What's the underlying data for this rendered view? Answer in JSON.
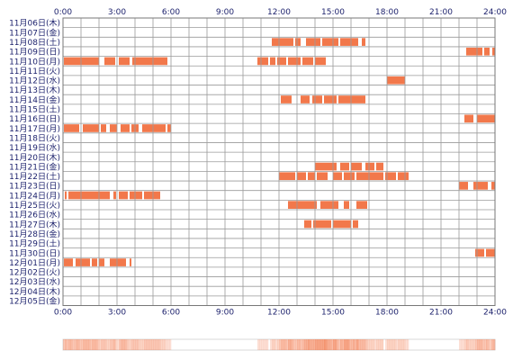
{
  "chart_data": {
    "type": "timeline",
    "x_ticks": [
      "0:00",
      "3:00",
      "6:00",
      "9:00",
      "12:00",
      "15:00",
      "18:00",
      "21:00",
      "24:00"
    ],
    "x_range_hours": [
      0,
      24
    ],
    "grid": true,
    "bar_color": "#f2784b",
    "summary_strip_color": "#f2784b",
    "days": [
      {
        "label": "11月06日(木)",
        "segments": []
      },
      {
        "label": "11月07日(金)",
        "segments": []
      },
      {
        "label": "11月08日(土)",
        "segments": [
          [
            11.6,
            12.8
          ],
          [
            12.9,
            13.2
          ],
          [
            13.5,
            14.3
          ],
          [
            14.4,
            15.3
          ],
          [
            15.4,
            16.4
          ],
          [
            16.6,
            16.8
          ]
        ]
      },
      {
        "label": "11月09日(日)",
        "segments": [
          [
            22.4,
            23.3
          ],
          [
            23.4,
            23.7
          ],
          [
            23.85,
            24.0
          ]
        ]
      },
      {
        "label": "11月10日(月)",
        "segments": [
          [
            0.05,
            2.0
          ],
          [
            2.3,
            2.9
          ],
          [
            3.1,
            3.7
          ],
          [
            3.85,
            5.8
          ],
          [
            10.8,
            11.4
          ],
          [
            11.5,
            11.8
          ],
          [
            11.9,
            12.4
          ],
          [
            12.5,
            13.2
          ],
          [
            13.3,
            13.9
          ],
          [
            14.0,
            14.6
          ]
        ]
      },
      {
        "label": "11月11日(火)",
        "segments": []
      },
      {
        "label": "11月12日(水)",
        "segments": [
          [
            18.0,
            19.0
          ]
        ]
      },
      {
        "label": "11月13日(木)",
        "segments": []
      },
      {
        "label": "11月14日(金)",
        "segments": [
          [
            12.1,
            12.7
          ],
          [
            13.2,
            13.7
          ],
          [
            13.85,
            14.4
          ],
          [
            14.5,
            15.2
          ],
          [
            15.3,
            16.8
          ]
        ]
      },
      {
        "label": "11月15日(土)",
        "segments": []
      },
      {
        "label": "11月16日(日)",
        "segments": [
          [
            22.3,
            22.8
          ],
          [
            23.0,
            24.0
          ]
        ]
      },
      {
        "label": "11月17日(月)",
        "segments": [
          [
            0.05,
            0.9
          ],
          [
            1.1,
            2.0
          ],
          [
            2.1,
            2.4
          ],
          [
            2.6,
            3.0
          ],
          [
            3.2,
            3.7
          ],
          [
            3.8,
            4.2
          ],
          [
            4.4,
            5.7
          ],
          [
            5.8,
            6.0
          ]
        ]
      },
      {
        "label": "11月18日(火)",
        "segments": []
      },
      {
        "label": "11月19日(水)",
        "segments": []
      },
      {
        "label": "11月20日(木)",
        "segments": []
      },
      {
        "label": "11月21日(金)",
        "segments": [
          [
            14.0,
            15.2
          ],
          [
            15.4,
            15.9
          ],
          [
            16.0,
            16.6
          ],
          [
            16.8,
            17.3
          ],
          [
            17.4,
            17.8
          ]
        ]
      },
      {
        "label": "11月22日(土)",
        "segments": [
          [
            12.0,
            12.9
          ],
          [
            13.0,
            13.5
          ],
          [
            13.6,
            14.0
          ],
          [
            14.1,
            14.7
          ],
          [
            15.0,
            15.5
          ],
          [
            15.6,
            16.2
          ],
          [
            16.3,
            17.8
          ],
          [
            17.9,
            18.5
          ],
          [
            18.6,
            19.2
          ]
        ]
      },
      {
        "label": "11月23日(日)",
        "segments": [
          [
            22.0,
            22.5
          ],
          [
            22.8,
            23.6
          ],
          [
            23.8,
            24.0
          ]
        ]
      },
      {
        "label": "11月24日(月)",
        "segments": [
          [
            0.1,
            0.2
          ],
          [
            0.3,
            2.6
          ],
          [
            2.8,
            2.95
          ],
          [
            3.1,
            3.6
          ],
          [
            3.7,
            4.4
          ],
          [
            4.5,
            5.4
          ]
        ]
      },
      {
        "label": "11月25日(火)",
        "segments": [
          [
            12.5,
            14.1
          ],
          [
            14.3,
            15.3
          ],
          [
            15.6,
            15.9
          ],
          [
            16.3,
            16.9
          ]
        ]
      },
      {
        "label": "11月26日(水)",
        "segments": []
      },
      {
        "label": "11月27日(木)",
        "segments": [
          [
            13.4,
            13.8
          ],
          [
            13.9,
            14.9
          ],
          [
            15.0,
            16.0
          ],
          [
            16.1,
            16.4
          ]
        ]
      },
      {
        "label": "11月28日(金)",
        "segments": []
      },
      {
        "label": "11月29日(土)",
        "segments": []
      },
      {
        "label": "11月30日(日)",
        "segments": [
          [
            22.9,
            23.4
          ],
          [
            23.5,
            24.0
          ]
        ]
      },
      {
        "label": "12月01日(月)",
        "segments": [
          [
            0.05,
            0.55
          ],
          [
            0.7,
            1.5
          ],
          [
            1.6,
            1.9
          ],
          [
            2.0,
            2.3
          ],
          [
            2.6,
            3.5
          ],
          [
            3.7,
            3.8
          ]
        ]
      },
      {
        "label": "12月02日(火)",
        "segments": []
      },
      {
        "label": "12月03日(水)",
        "segments": []
      },
      {
        "label": "12月04日(木)",
        "segments": []
      },
      {
        "label": "12月05日(金)",
        "segments": []
      }
    ]
  }
}
